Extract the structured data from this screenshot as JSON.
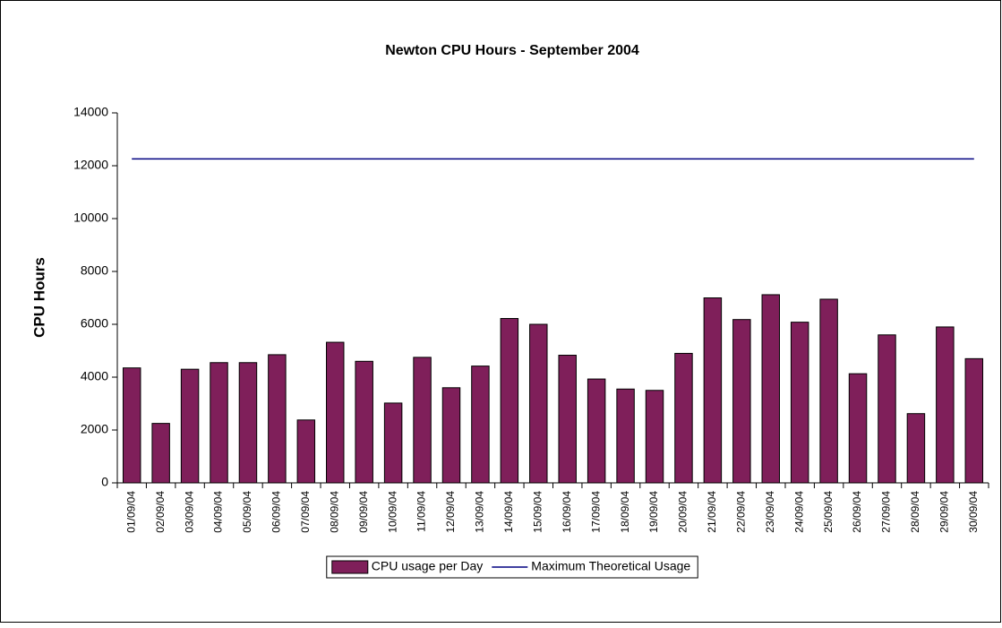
{
  "chart_data": {
    "type": "bar",
    "title": "Newton CPU Hours - September 2004",
    "y_label": "CPU Hours",
    "categories": [
      "01/09/04",
      "02/09/04",
      "03/09/04",
      "04/09/04",
      "05/09/04",
      "06/09/04",
      "07/09/04",
      "08/09/04",
      "09/09/04",
      "10/09/04",
      "11/09/04",
      "12/09/04",
      "13/09/04",
      "14/09/04",
      "15/09/04",
      "16/09/04",
      "17/09/04",
      "18/09/04",
      "19/09/04",
      "20/09/04",
      "21/09/04",
      "22/09/04",
      "23/09/04",
      "24/09/04",
      "25/09/04",
      "26/09/04",
      "27/09/04",
      "28/09/04",
      "29/09/04",
      "30/09/04"
    ],
    "series": [
      {
        "name": "CPU usage per Day",
        "type": "bar",
        "color": "#7f1f5a",
        "values": [
          4350,
          2250,
          4300,
          4550,
          4550,
          4850,
          2380,
          5320,
          4600,
          3020,
          4750,
          3600,
          4420,
          6220,
          6000,
          4830,
          3930,
          3550,
          3500,
          4900,
          7000,
          6180,
          7120,
          6080,
          6950,
          4130,
          5600,
          2620,
          5900,
          4700
        ]
      },
      {
        "name": "Maximum Theoretical Usage",
        "type": "line",
        "color": "#000080",
        "values": [
          12260,
          12260,
          12260,
          12260,
          12260,
          12260,
          12260,
          12260,
          12260,
          12260,
          12260,
          12260,
          12260,
          12260,
          12260,
          12260,
          12260,
          12260,
          12260,
          12260,
          12260,
          12260,
          12260,
          12260,
          12260,
          12260,
          12260,
          12260,
          12260,
          12260
        ]
      }
    ],
    "ylim": [
      0,
      14000
    ],
    "yticks": [
      0,
      2000,
      4000,
      6000,
      8000,
      10000,
      12000,
      14000
    ],
    "grid": false,
    "legend": "bottom"
  }
}
